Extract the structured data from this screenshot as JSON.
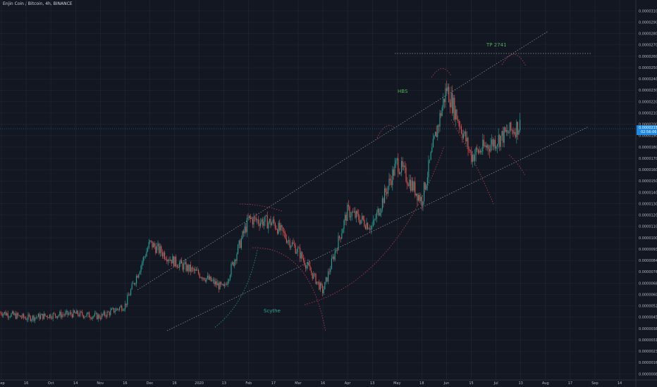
{
  "header": {
    "title": "Enjin Coin / Bitcoin, 4h, BINANCE"
  },
  "colors": {
    "background": "#131722",
    "grid": "#242836",
    "up": "#26a69a",
    "down": "#ef5350",
    "channel": "#9598a1",
    "arc_green": "#1e9e8c",
    "arc_red": "#c0394a",
    "label_green": "#4caf50",
    "scythe_teal": "#26a69a",
    "price_badge": "#1e88e5",
    "axis_text": "#b2b5be"
  },
  "price_badge": {
    "price": "0.00002150",
    "countdown": "02:56:06"
  },
  "chart_data": {
    "type": "candlestick",
    "title": "Enjin Coin / Bitcoin, 4h, BINANCE",
    "xlabel": "",
    "ylabel": "",
    "grid": true,
    "ylim": [
      5e-07,
      3.1e-06
    ],
    "y_ticks": [
      "0.00003100",
      "0.00002900",
      "0.00002800",
      "0.00002700",
      "0.00002600",
      "0.00002500",
      "0.00002400",
      "0.00002300",
      "0.00002200",
      "0.00002100",
      "0.00002000",
      "0.00001900",
      "0.00001800",
      "0.00001700",
      "0.00001600",
      "0.00001500",
      "0.00001400",
      "0.00001300",
      "0.00001200",
      "0.00001100",
      "0.00001000",
      "0.00000930",
      "0.00000840",
      "0.00000760",
      "0.00000680",
      "0.00000600",
      "0.00000520",
      "0.00000450",
      "0.00000380",
      "0.00000310",
      "0.00000230",
      "0.00000160",
      "0.00000080"
    ],
    "x_ticks": [
      "Sep",
      "16",
      "Oct",
      "14",
      "Nov",
      "16",
      "Dec",
      "16",
      "2020",
      "13",
      "Feb",
      "17",
      "Mar",
      "16",
      "Apr",
      "13",
      "May",
      "18",
      "Jun",
      "15",
      "Jul",
      "13",
      "Aug",
      "17",
      "Sep",
      "14"
    ],
    "price_path": [
      [
        "Sep",
        7.3e-06
      ],
      [
        "16",
        6.9e-06
      ],
      [
        "Oct",
        7.1e-06
      ],
      [
        "14",
        7.2e-06
      ],
      [
        "Nov",
        7e-06
      ],
      [
        "16",
        7.8e-06
      ],
      [
        "Dec",
        1.24e-05
      ],
      [
        "16",
        1.1e-05
      ],
      [
        "2020",
        1.01e-05
      ],
      [
        "13",
        9e-06
      ],
      [
        "Feb",
        1.42e-05
      ],
      [
        "17",
        1.39e-05
      ],
      [
        "Mar",
        1.18e-05
      ],
      [
        "16",
        8.8e-06
      ],
      [
        "Apr",
        1.48e-05
      ],
      [
        "13",
        1.36e-05
      ],
      [
        "May",
        1.85e-05
      ],
      [
        "18",
        1.56e-05
      ],
      [
        "Jun",
        2.45e-05
      ],
      [
        "15",
        1.9e-05
      ],
      [
        "Jul",
        2.02e-05
      ],
      [
        "13",
        2.15e-05
      ]
    ],
    "annotations": [
      "TP 2741",
      "HBS",
      "Scythe"
    ]
  }
}
